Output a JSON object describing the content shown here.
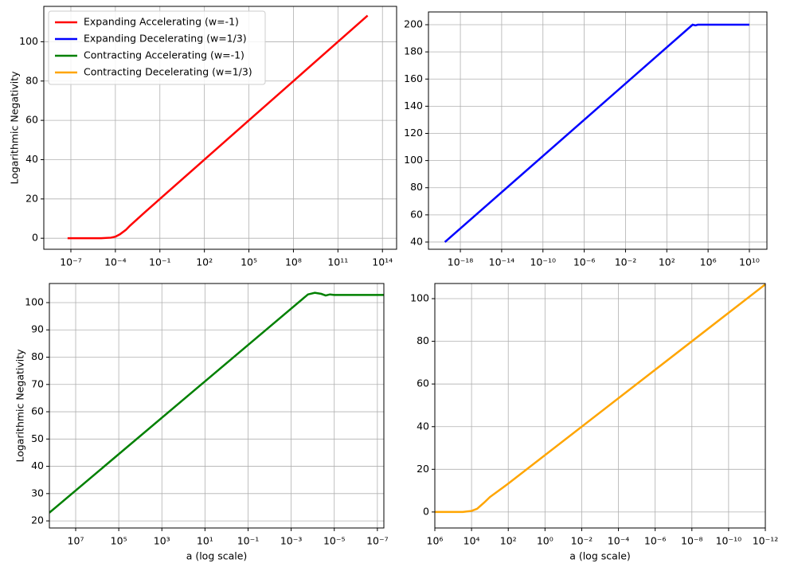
{
  "chart_data": [
    {
      "type": "line",
      "ylabel": "Logarithmic Negativity",
      "xscale": "log",
      "grid": true,
      "legend_loc": "upper left",
      "xlim": [
        1.5e-09,
        900000000000000.0
      ],
      "ylim": [
        -5.6,
        118
      ],
      "xticks": [
        {
          "value": 1e-07,
          "label": "10⁻⁷"
        },
        {
          "value": 0.0001,
          "label": "10⁻⁴"
        },
        {
          "value": 0.1,
          "label": "10⁻¹"
        },
        {
          "value": 100.0,
          "label": "10²"
        },
        {
          "value": 100000.0,
          "label": "10⁵"
        },
        {
          "value": 100000000.0,
          "label": "10⁸"
        },
        {
          "value": 100000000000.0,
          "label": "10¹¹"
        },
        {
          "value": 100000000000000.0,
          "label": "10¹⁴"
        }
      ],
      "yticks": [
        0,
        20,
        40,
        60,
        80,
        100
      ],
      "series": [
        {
          "name": "Expanding Accelerating (w=-1)",
          "color": "#ff0000",
          "x": [
            6e-08,
            1e-05,
            5e-05,
            0.0001,
            0.0002,
            0.0005,
            0.001,
            0.01,
            0.1,
            100.0,
            100000.0,
            100000000.0,
            100000000000.0,
            10000000000000.0
          ],
          "values": [
            0,
            0,
            0.3,
            0.8,
            2,
            4.2,
            6.5,
            13.3,
            20,
            40,
            60,
            80,
            100,
            113.3
          ]
        }
      ]
    },
    {
      "type": "line",
      "xscale": "log",
      "grid": true,
      "xlim": [
        8.1e-22,
        500000000000.0
      ],
      "ylim": [
        34.7,
        209.4
      ],
      "xticks": [
        {
          "value": 1e-18,
          "label": "10⁻¹⁸"
        },
        {
          "value": 1e-14,
          "label": "10⁻¹⁴"
        },
        {
          "value": 1e-10,
          "label": "10⁻¹⁰"
        },
        {
          "value": 1e-06,
          "label": "10⁻⁶"
        },
        {
          "value": 0.01,
          "label": "10⁻²"
        },
        {
          "value": 100.0,
          "label": "10²"
        },
        {
          "value": 1000000.0,
          "label": "10⁶"
        },
        {
          "value": 10000000000.0,
          "label": "10¹⁰"
        }
      ],
      "yticks": [
        40,
        60,
        80,
        100,
        120,
        140,
        160,
        180,
        200
      ],
      "series": [
        {
          "name": "Expanding Decelerating (w=1/3)",
          "color": "#0000ff",
          "x": [
            3.16e-20,
            31600.0,
            60000.0,
            100000.0,
            10000000000.0
          ],
          "values": [
            40,
            200,
            199.5,
            200,
            200
          ]
        }
      ]
    },
    {
      "type": "line",
      "ylabel": "Logarithmic Negativity",
      "xlabel": "a (log scale)",
      "xscale": "log",
      "grid": true,
      "xlim": [
        166000000.0,
        5e-08
      ],
      "ylim": [
        17.4,
        107
      ],
      "xticks": [
        {
          "value": 10000000.0,
          "label": "10⁷"
        },
        {
          "value": 100000.0,
          "label": "10⁵"
        },
        {
          "value": 1000.0,
          "label": "10³"
        },
        {
          "value": 10.0,
          "label": "10¹"
        },
        {
          "value": 0.1,
          "label": "10⁻¹"
        },
        {
          "value": 0.001,
          "label": "10⁻³"
        },
        {
          "value": 1e-05,
          "label": "10⁻⁵"
        },
        {
          "value": 1e-07,
          "label": "10⁻⁷"
        }
      ],
      "yticks": [
        20,
        30,
        40,
        50,
        60,
        70,
        80,
        90,
        100
      ],
      "series": [
        {
          "name": "Contracting Accelerating (w=-1)",
          "color": "#008000",
          "x": [
            166000000.0,
            0.000166,
            8e-05,
            4e-05,
            2.5e-05,
            1.6e-05,
            1e-05,
            5e-08
          ],
          "values": [
            23,
            103,
            103.6,
            103.2,
            102.6,
            103,
            102.8,
            102.8
          ]
        }
      ]
    },
    {
      "type": "line",
      "xlabel": "a (log scale)",
      "xscale": "log",
      "grid": true,
      "xlim": [
        1000000.0,
        1e-12
      ],
      "ylim": [
        -7.5,
        107.1
      ],
      "xticks": [
        {
          "value": 1000000.0,
          "label": "10⁶"
        },
        {
          "value": 10000.0,
          "label": "10⁴"
        },
        {
          "value": 100.0,
          "label": "10²"
        },
        {
          "value": 1,
          "label": "10⁰"
        },
        {
          "value": 0.01,
          "label": "10⁻²"
        },
        {
          "value": 0.0001,
          "label": "10⁻⁴"
        },
        {
          "value": 1e-06,
          "label": "10⁻⁶"
        },
        {
          "value": 1e-08,
          "label": "10⁻⁸"
        },
        {
          "value": 1e-10,
          "label": "10⁻¹⁰"
        },
        {
          "value": 1e-12,
          "label": "10⁻¹²"
        }
      ],
      "yticks": [
        0,
        20,
        40,
        60,
        80,
        100
      ],
      "series": [
        {
          "name": "Contracting Decelerating (w=1/3)",
          "color": "#ffa500",
          "x": [
            1000000.0,
            30000.0,
            10000.0,
            5000.0,
            2000.0,
            1000.0,
            100.0,
            1e-12
          ],
          "values": [
            0,
            0,
            0.5,
            1.5,
            4.5,
            7,
            13.3,
            106.7
          ]
        }
      ]
    }
  ]
}
